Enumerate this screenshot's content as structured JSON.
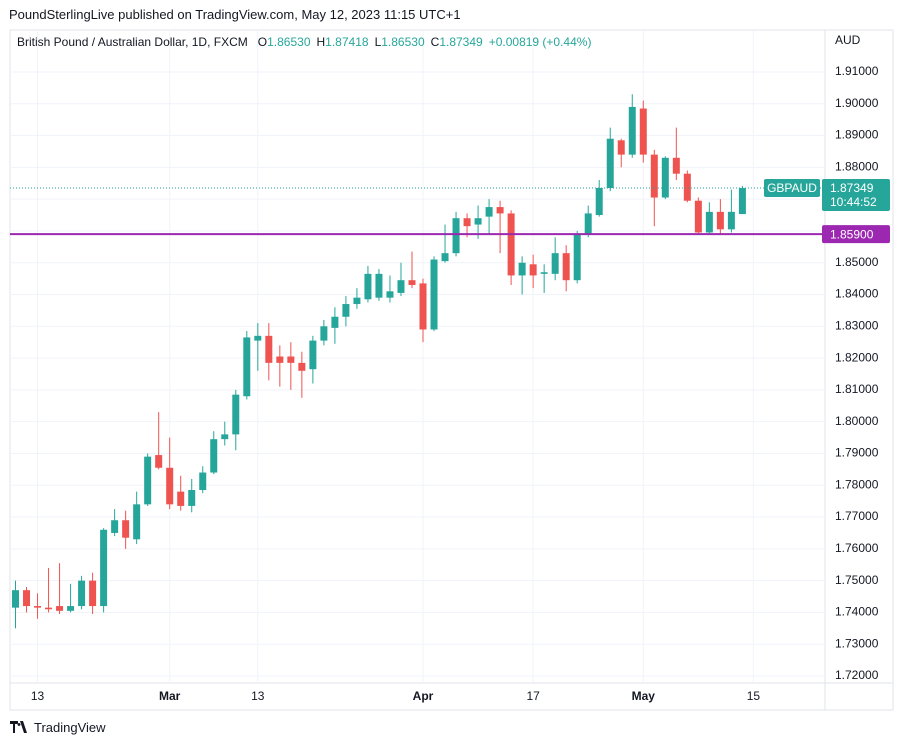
{
  "header": "PoundSterlingLive published on TradingView.com, May 12, 2023 11:15 UTC+1",
  "footer": "TradingView",
  "chart_data": {
    "type": "candlestick",
    "title": "British Pound / Australian Dollar, 1D, FXCM",
    "legend": [
      {
        "label": "O",
        "value": "1.86530"
      },
      {
        "label": "H",
        "value": "1.87418"
      },
      {
        "label": "L",
        "value": "1.86530"
      },
      {
        "label": "C",
        "value": "1.87349"
      }
    ],
    "change": "+0.00819 (+0.44%)",
    "currency": "AUD",
    "symbol": "GBPAUD",
    "last_value_label": "1.87349",
    "countdown": "10:44:52",
    "up_color": "#26a69a",
    "down_color": "#ef5350",
    "grid": true,
    "categories": [
      null,
      null,
      "13",
      null,
      null,
      null,
      null,
      null,
      null,
      null,
      null,
      null,
      null,
      null,
      "Mar",
      null,
      null,
      null,
      null,
      null,
      null,
      null,
      "13",
      null,
      null,
      null,
      null,
      null,
      null,
      null,
      null,
      null,
      null,
      null,
      null,
      null,
      null,
      "Apr",
      null,
      null,
      null,
      null,
      null,
      null,
      null,
      null,
      null,
      "17",
      null,
      null,
      null,
      null,
      null,
      null,
      null,
      null,
      null,
      "May",
      null,
      null,
      null,
      null,
      null,
      null,
      null,
      null,
      null,
      "15",
      null,
      null,
      null,
      null,
      null,
      null
    ],
    "open": [
      1.7415,
      1.747,
      1.742,
      1.7415,
      1.742,
      1.7405,
      1.742,
      1.75,
      1.742,
      1.765,
      1.769,
      1.763,
      1.774,
      1.7895,
      1.7855,
      1.778,
      1.7735,
      1.7785,
      1.784,
      1.7945,
      1.796,
      1.808,
      1.8255,
      1.827,
      1.8205,
      1.8205,
      1.8185,
      1.8165,
      1.8255,
      1.8295,
      1.833,
      1.837,
      1.8385,
      1.839,
      1.839,
      1.8405,
      1.8445,
      1.8435,
      1.829,
      1.8505,
      1.853,
      1.864,
      1.862,
      1.8645,
      1.8675,
      1.8655,
      1.846,
      1.8495,
      1.8465,
      1.8465,
      1.853,
      1.8445,
      1.859,
      1.865,
      1.8735,
      1.8885,
      1.884,
      1.8985,
      1.884,
      1.8705,
      1.883,
      1.878,
      1.8695,
      1.8595,
      1.866,
      1.8605,
      1.8653,
      null,
      null,
      null,
      null,
      null,
      null,
      null
    ],
    "high": [
      1.75,
      1.748,
      1.746,
      1.754,
      1.7555,
      1.749,
      1.7515,
      1.7525,
      1.7665,
      1.7725,
      1.772,
      1.778,
      1.79,
      1.803,
      1.795,
      1.783,
      1.782,
      1.786,
      1.797,
      1.8,
      1.81,
      1.8285,
      1.831,
      1.831,
      1.824,
      1.825,
      1.822,
      1.827,
      1.832,
      1.836,
      1.8395,
      1.842,
      1.849,
      1.848,
      1.846,
      1.85,
      1.8535,
      1.845,
      1.852,
      1.862,
      1.866,
      1.8655,
      1.868,
      1.87,
      1.8695,
      1.8665,
      1.852,
      1.8525,
      1.8495,
      1.858,
      1.8555,
      1.86,
      1.868,
      1.876,
      1.8925,
      1.889,
      1.903,
      1.901,
      1.8855,
      1.8835,
      1.8925,
      1.879,
      1.8705,
      1.869,
      1.87,
      1.873,
      1.87418,
      null,
      null,
      null,
      null,
      null,
      null,
      null
    ],
    "low": [
      1.735,
      1.74,
      1.738,
      1.74,
      1.7395,
      1.74,
      1.741,
      1.7395,
      1.74,
      1.764,
      1.76,
      1.7615,
      1.7735,
      1.785,
      1.7725,
      1.772,
      1.7715,
      1.7775,
      1.7835,
      1.7925,
      1.791,
      1.807,
      1.816,
      1.813,
      1.811,
      1.81,
      1.8075,
      1.812,
      1.824,
      1.8245,
      1.83,
      1.8355,
      1.8375,
      1.838,
      1.8375,
      1.8395,
      1.842,
      1.825,
      1.8285,
      1.85,
      1.852,
      1.858,
      1.8575,
      1.859,
      1.853,
      1.843,
      1.84,
      1.842,
      1.8405,
      1.8445,
      1.841,
      1.8435,
      1.858,
      1.8645,
      1.8725,
      1.88,
      1.883,
      1.8815,
      1.8615,
      1.87,
      1.876,
      1.869,
      1.859,
      1.859,
      1.859,
      1.8595,
      1.8653,
      null,
      null,
      null,
      null,
      null,
      null,
      null
    ],
    "close": [
      1.747,
      1.742,
      1.7415,
      1.741,
      1.7405,
      1.742,
      1.75,
      1.742,
      1.766,
      1.769,
      1.7635,
      1.774,
      1.789,
      1.7855,
      1.774,
      1.7735,
      1.7785,
      1.784,
      1.7945,
      1.796,
      1.8085,
      1.8265,
      1.827,
      1.8185,
      1.8185,
      1.8185,
      1.816,
      1.8255,
      1.83,
      1.833,
      1.837,
      1.839,
      1.8465,
      1.8465,
      1.841,
      1.8445,
      1.843,
      1.829,
      1.851,
      1.853,
      1.864,
      1.8615,
      1.864,
      1.8675,
      1.8655,
      1.846,
      1.85,
      1.846,
      1.847,
      1.853,
      1.8445,
      1.859,
      1.8655,
      1.8735,
      1.889,
      1.884,
      1.899,
      1.884,
      1.8705,
      1.883,
      1.878,
      1.8695,
      1.8595,
      1.866,
      1.8605,
      1.866,
      1.87349,
      null,
      null,
      null,
      null,
      null,
      null,
      null
    ],
    "hlines": [
      {
        "value": 1.859,
        "label": "1.85900",
        "color": "#9c27b0"
      }
    ],
    "ylim": [
      1.7178,
      1.9232
    ],
    "yticks": [
      {
        "value": 1.72,
        "label": "1.72000"
      },
      {
        "value": 1.73,
        "label": "1.73000"
      },
      {
        "value": 1.74,
        "label": "1.74000"
      },
      {
        "value": 1.75,
        "label": "1.75000"
      },
      {
        "value": 1.76,
        "label": "1.76000"
      },
      {
        "value": 1.77,
        "label": "1.77000"
      },
      {
        "value": 1.78,
        "label": "1.78000"
      },
      {
        "value": 1.79,
        "label": "1.79000"
      },
      {
        "value": 1.8,
        "label": "1.80000"
      },
      {
        "value": 1.81,
        "label": "1.81000"
      },
      {
        "value": 1.82,
        "label": "1.82000"
      },
      {
        "value": 1.83,
        "label": "1.83000"
      },
      {
        "value": 1.84,
        "label": "1.84000"
      },
      {
        "value": 1.85,
        "label": "1.85000"
      },
      {
        "value": 1.86,
        "label": "1.86000"
      },
      {
        "value": 1.87,
        "label": "1.87000"
      },
      {
        "value": 1.88,
        "label": "1.88000"
      },
      {
        "value": 1.89,
        "label": "1.89000"
      },
      {
        "value": 1.9,
        "label": "1.90000"
      },
      {
        "value": 1.91,
        "label": "1.91000"
      }
    ]
  }
}
